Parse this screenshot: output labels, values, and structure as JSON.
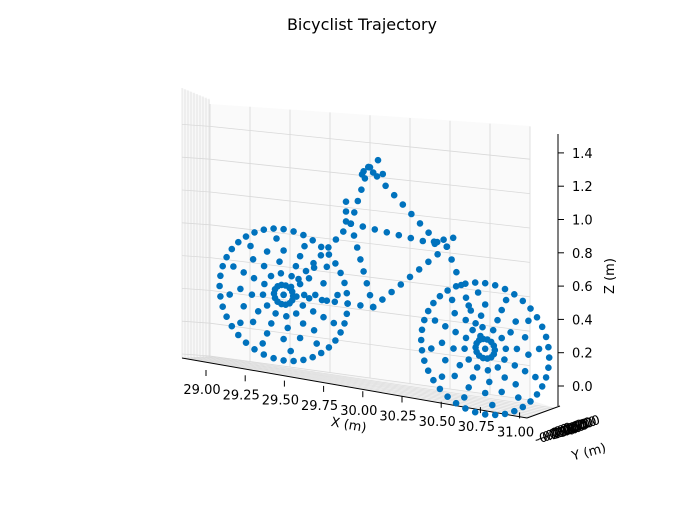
{
  "chart_data": {
    "type": "scatter",
    "title": "Bicyclist Trajectory",
    "xlabel": "X (m)",
    "ylabel": "Y (m)",
    "zlabel": "Z (m)",
    "projection": "3d",
    "grid": true,
    "marker_color": "#0072bd",
    "x_ticks": [
      "29.00",
      "29.25",
      "29.50",
      "29.75",
      "30.00",
      "30.25",
      "30.50",
      "30.75",
      "31.00"
    ],
    "z_ticks": [
      "0.0",
      "0.2",
      "0.4",
      "0.6",
      "0.8",
      "1.0",
      "1.2",
      "1.4"
    ],
    "y_ticks_overlapping": [
      "-0.250",
      "-0.200",
      "-0.150",
      "-0.100",
      "-0.050",
      "0.000",
      "0.050",
      "0.100",
      "0.150",
      "0.200"
    ],
    "xlim": [
      28.95,
      31.05
    ],
    "zlim": [
      -0.05,
      1.55
    ],
    "wheels": [
      {
        "name": "rear",
        "center_x": 29.46,
        "center_z": 0.63,
        "rim_radius": 0.4,
        "ring_radii": [
          0.06,
          0.27
        ],
        "spokes": 12
      },
      {
        "name": "front",
        "center_x": 30.72,
        "center_z": 0.47,
        "rim_radius": 0.4,
        "ring_radii": [
          0.06,
          0.27
        ],
        "spokes": 12
      }
    ],
    "frame_segments": [
      {
        "from": [
          29.46,
          0.63
        ],
        "to": [
          29.88,
          1.12
        ]
      },
      {
        "from": [
          29.88,
          1.12
        ],
        "to": [
          29.99,
          1.48
        ]
      },
      {
        "from": [
          29.99,
          1.48
        ],
        "to": [
          30.42,
          1.08
        ]
      },
      {
        "from": [
          29.88,
          1.12
        ],
        "to": [
          30.48,
          1.06
        ]
      },
      {
        "from": [
          30.48,
          1.06
        ],
        "to": [
          30.72,
          0.47
        ]
      },
      {
        "from": [
          29.88,
          1.12
        ],
        "to": [
          30.02,
          0.63
        ]
      },
      {
        "from": [
          30.02,
          0.63
        ],
        "to": [
          30.48,
          1.06
        ]
      },
      {
        "from": [
          29.46,
          0.63
        ],
        "to": [
          30.02,
          0.63
        ]
      },
      {
        "from": [
          29.85,
          1.25
        ],
        "to": [
          29.85,
          1.13
        ]
      },
      {
        "from": [
          29.95,
          1.43
        ],
        "to": [
          30.05,
          1.53
        ]
      },
      {
        "from": [
          29.96,
          1.45
        ],
        "to": [
          30.08,
          1.45
        ]
      },
      {
        "from": [
          30.4,
          1.08
        ],
        "to": [
          30.52,
          1.12
        ]
      }
    ]
  }
}
